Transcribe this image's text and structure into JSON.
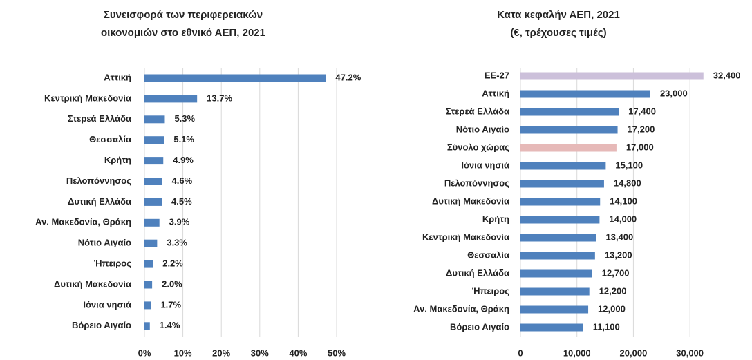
{
  "chart_data": [
    {
      "type": "hbar",
      "title": [
        "Συνεισφορά των περιφερειακών",
        "οικονομιών στο εθνικό ΑΕΠ, 2021"
      ],
      "categories": [
        "Αττική",
        "Κεντρική Μακεδονία",
        "Στερεά Ελλάδα",
        "Θεσσαλία",
        "Κρήτη",
        "Πελοπόννησος",
        "Δυτική Ελλάδα",
        "Αν. Μακεδονία, Θράκη",
        "Νότιο Αιγαίο",
        "Ήπειρος",
        "Δυτική Μακεδονία",
        "Ιόνια νησιά",
        "Βόρειο Αιγαίο"
      ],
      "values": [
        47.2,
        13.7,
        5.3,
        5.1,
        4.9,
        4.6,
        4.5,
        3.9,
        3.3,
        2.2,
        2.0,
        1.7,
        1.4
      ],
      "value_labels": [
        "47.2%",
        "13.7%",
        "5.3%",
        "5.1%",
        "4.9%",
        "4.6%",
        "4.5%",
        "3.9%",
        "3.3%",
        "2.2%",
        "2.0%",
        "1.7%",
        "1.4%"
      ],
      "color": "#4f81bd",
      "xlim": [
        0,
        50
      ],
      "xticks": [
        {
          "value": 0,
          "label": "0%"
        },
        {
          "value": 10,
          "label": "10%"
        },
        {
          "value": 20,
          "label": "20%"
        },
        {
          "value": 30,
          "label": "30%"
        },
        {
          "value": 40,
          "label": "40%"
        },
        {
          "value": 50,
          "label": "50%"
        }
      ],
      "grid": true
    },
    {
      "type": "hbar",
      "title": [
        "Κατα κεφαλήν ΑΕΠ, 2021",
        "(€, τρέχουσες τιμές)"
      ],
      "categories": [
        "ΕΕ-27",
        "Αττική",
        "Στερεά Ελλάδα",
        "Νότιο Αιγαίο",
        "Σύνολο χώρας",
        "Ιόνια νησιά",
        "Πελοπόννησος",
        "Δυτική Μακεδονία",
        "Κρήτη",
        "Κεντρική Μακεδονία",
        "Θεσσαλία",
        "Δυτική Ελλάδα",
        "Ήπειρος",
        "Αν. Μακεδονία, Θράκη",
        "Βόρειο Αιγαίο"
      ],
      "values": [
        32400,
        23000,
        17400,
        17200,
        17000,
        15100,
        14800,
        14100,
        14000,
        13400,
        13200,
        12700,
        12200,
        12000,
        11100
      ],
      "value_labels": [
        "32,400",
        "23,000",
        "17,400",
        "17,200",
        "17,000",
        "15,100",
        "14,800",
        "14,100",
        "14,000",
        "13,400",
        "13,200",
        "12,700",
        "12,200",
        "12,000",
        "11,100"
      ],
      "colors": [
        "#ccc0da",
        "#4f81bd",
        "#4f81bd",
        "#4f81bd",
        "#e6b9b8",
        "#4f81bd",
        "#4f81bd",
        "#4f81bd",
        "#4f81bd",
        "#4f81bd",
        "#4f81bd",
        "#4f81bd",
        "#4f81bd",
        "#4f81bd",
        "#4f81bd"
      ],
      "xlim": [
        0,
        35000
      ],
      "xticks": [
        0,
        {
          "value": 10000,
          "label": "10,000"
        },
        {
          "value": 20000,
          "label": "20,000"
        },
        {
          "value": 30000,
          "label": "30,000"
        }
      ],
      "grid": true
    }
  ]
}
